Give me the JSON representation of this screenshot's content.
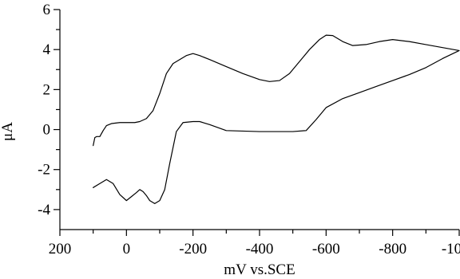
{
  "chart_data": {
    "type": "line",
    "title": "",
    "xlabel": "mV vs.SCE",
    "ylabel": "μA",
    "xlim": [
      200,
      -1000
    ],
    "ylim": [
      -5,
      6
    ],
    "x_ticks": [
      200,
      0,
      -200,
      -400,
      -600,
      -800,
      -1000
    ],
    "x_tick_labels": [
      "200",
      "0",
      "-200",
      "-400",
      "-600",
      "-800",
      "-1000"
    ],
    "y_ticks": [
      6,
      4,
      2,
      0,
      -2,
      -4
    ],
    "y_tick_labels": [
      "6",
      "4",
      "2",
      "0",
      "-2",
      "-4"
    ],
    "series": [
      {
        "line_color": "#000000",
        "points": [
          [
            100,
            -0.8
          ],
          [
            95,
            -0.4
          ],
          [
            90,
            -0.35
          ],
          [
            80,
            -0.35
          ],
          [
            70,
            -0.05
          ],
          [
            60,
            0.2
          ],
          [
            45,
            0.3
          ],
          [
            20,
            0.35
          ],
          [
            0,
            0.35
          ],
          [
            -25,
            0.35
          ],
          [
            -40,
            0.4
          ],
          [
            -60,
            0.55
          ],
          [
            -80,
            0.95
          ],
          [
            -100,
            1.8
          ],
          [
            -120,
            2.8
          ],
          [
            -140,
            3.3
          ],
          [
            -160,
            3.5
          ],
          [
            -180,
            3.7
          ],
          [
            -200,
            3.8
          ],
          [
            -220,
            3.7
          ],
          [
            -250,
            3.5
          ],
          [
            -300,
            3.15
          ],
          [
            -350,
            2.8
          ],
          [
            -400,
            2.5
          ],
          [
            -430,
            2.4
          ],
          [
            -460,
            2.45
          ],
          [
            -490,
            2.8
          ],
          [
            -520,
            3.4
          ],
          [
            -550,
            4.0
          ],
          [
            -580,
            4.5
          ],
          [
            -600,
            4.72
          ],
          [
            -620,
            4.7
          ],
          [
            -650,
            4.4
          ],
          [
            -680,
            4.2
          ],
          [
            -720,
            4.25
          ],
          [
            -760,
            4.4
          ],
          [
            -800,
            4.5
          ],
          [
            -850,
            4.4
          ],
          [
            -900,
            4.25
          ],
          [
            -950,
            4.1
          ],
          [
            -1000,
            3.95
          ],
          [
            -950,
            3.55
          ],
          [
            -900,
            3.1
          ],
          [
            -850,
            2.75
          ],
          [
            -800,
            2.45
          ],
          [
            -750,
            2.15
          ],
          [
            -700,
            1.85
          ],
          [
            -650,
            1.55
          ],
          [
            -600,
            1.1
          ],
          [
            -570,
            0.5
          ],
          [
            -540,
            -0.05
          ],
          [
            -500,
            -0.1
          ],
          [
            -400,
            -0.1
          ],
          [
            -300,
            -0.05
          ],
          [
            -250,
            0.25
          ],
          [
            -220,
            0.4
          ],
          [
            -200,
            0.4
          ],
          [
            -170,
            0.35
          ],
          [
            -150,
            -0.1
          ],
          [
            -130,
            -1.7
          ],
          [
            -115,
            -3.0
          ],
          [
            -100,
            -3.55
          ],
          [
            -85,
            -3.7
          ],
          [
            -70,
            -3.55
          ],
          [
            -60,
            -3.3
          ],
          [
            -50,
            -3.1
          ],
          [
            -40,
            -3.0
          ],
          [
            -30,
            -3.15
          ],
          [
            -15,
            -3.35
          ],
          [
            0,
            -3.55
          ],
          [
            20,
            -3.25
          ],
          [
            40,
            -2.7
          ],
          [
            60,
            -2.5
          ],
          [
            80,
            -2.7
          ],
          [
            100,
            -2.9
          ]
        ]
      }
    ],
    "grid": false,
    "legend": "none"
  }
}
